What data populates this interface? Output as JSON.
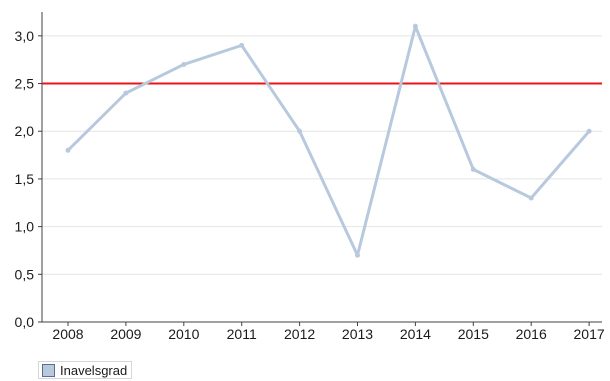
{
  "chart_data": {
    "type": "line",
    "title": "",
    "xlabel": "",
    "ylabel": "",
    "categories": [
      "2008",
      "2009",
      "2010",
      "2011",
      "2012",
      "2013",
      "2014",
      "2015",
      "2016",
      "2017"
    ],
    "series": [
      {
        "name": "Inavelsgrad",
        "values": [
          1.8,
          2.4,
          2.7,
          2.9,
          2.0,
          0.7,
          3.1,
          1.6,
          1.3,
          2.0
        ],
        "color": "#b8c9de"
      }
    ],
    "reference_line": {
      "value": 2.5,
      "color": "#e8141b"
    },
    "ylim": [
      0,
      3.25
    ],
    "yticks": [
      0,
      0.5,
      1.0,
      1.5,
      2.0,
      2.5,
      3.0
    ],
    "ytick_labels": [
      "0,0",
      "0,5",
      "1,0",
      "1,5",
      "2,0",
      "2,5",
      "3,0"
    ],
    "grid": true,
    "grid_color": "#e4e4e4",
    "axis_color": "#404040",
    "legend_position": "bottom-left",
    "legend_swatch_color": "#b8c9de"
  }
}
